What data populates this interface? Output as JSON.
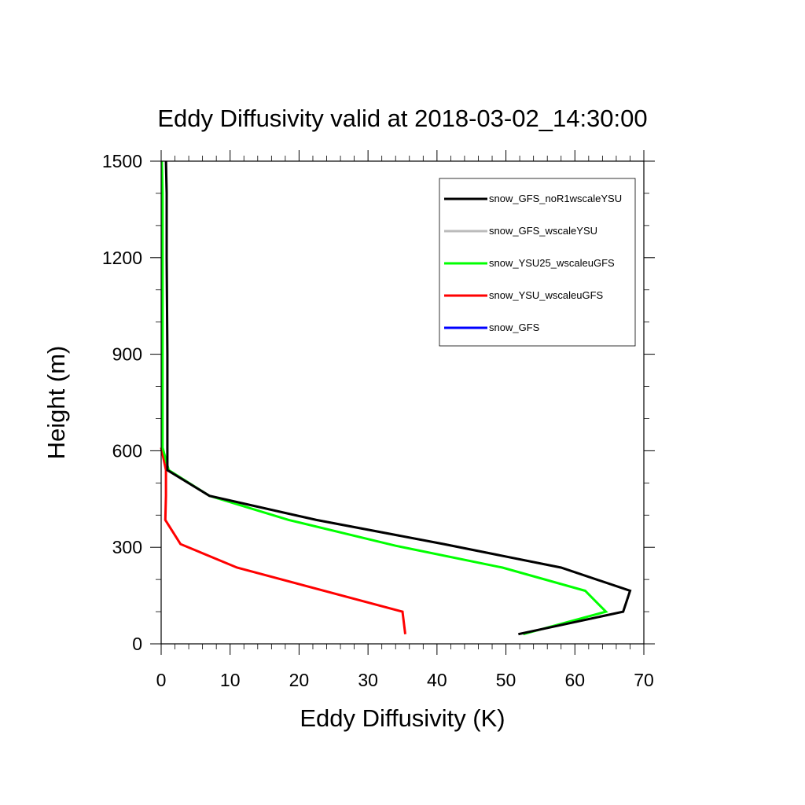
{
  "chart_data": {
    "type": "line",
    "title": "Eddy Diffusivity valid at 2018-03-02_14:30:00",
    "xlabel": "Eddy Diffusivity (K)",
    "ylabel": "Height (m)",
    "xlim": [
      0,
      70
    ],
    "ylim": [
      0,
      1500
    ],
    "xticks": [
      0,
      10,
      20,
      30,
      40,
      50,
      60,
      70
    ],
    "yticks": [
      0,
      300,
      600,
      900,
      1200,
      1500
    ],
    "grid": false,
    "legend_position": "top-right",
    "series": [
      {
        "name": "snow_GFS_noR1wscaleYSU",
        "color": "#000000",
        "x": [
          51.8,
          67.0,
          68.0,
          58.0,
          41.0,
          22.5,
          7.0,
          0.9,
          0.9,
          0.9,
          0.9,
          0.8,
          0.8,
          0.7
        ],
        "y": [
          30,
          100,
          165,
          237,
          310,
          385,
          460,
          540,
          610,
          710,
          900,
          1200,
          1400,
          1500
        ]
      },
      {
        "name": "snow_GFS_wscaleYSU",
        "color": "#bbbbbb",
        "x": [
          51.8,
          67.0,
          68.0,
          58.0,
          41.0,
          22.5,
          7.0,
          0.9,
          0.9,
          0.9,
          0.9,
          0.8,
          0.8,
          0.7
        ],
        "y": [
          30,
          100,
          165,
          237,
          310,
          385,
          460,
          540,
          610,
          710,
          900,
          1200,
          1400,
          1500
        ]
      },
      {
        "name": "snow_YSU25_wscaleuGFS",
        "color": "#00ff00",
        "x": [
          52.5,
          64.5,
          61.5,
          49.5,
          34.0,
          18.5,
          7.0,
          1.1,
          0.2,
          0.2,
          0.2,
          0.2,
          0.1
        ],
        "y": [
          30,
          100,
          165,
          237,
          305,
          385,
          460,
          540,
          610,
          900,
          1200,
          1400,
          1500
        ]
      },
      {
        "name": "snow_YSU_wscaleuGFS",
        "color": "#ff0000",
        "x": [
          35.4,
          35.0,
          11.0,
          2.8,
          0.6,
          0.7,
          0.7,
          0.0
        ],
        "y": [
          30,
          100,
          237,
          310,
          385,
          460,
          540,
          610
        ]
      },
      {
        "name": "snow_GFS",
        "color": "#0000ff",
        "x": [],
        "y": []
      }
    ]
  }
}
